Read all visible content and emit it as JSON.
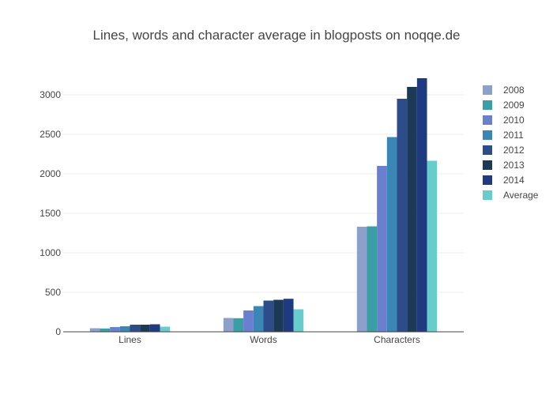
{
  "chart_data": {
    "type": "bar",
    "title": "Lines, words and character average in blogposts on noqqe.de",
    "categories": [
      "Lines",
      "Words",
      "Characters"
    ],
    "series": [
      {
        "name": "2008",
        "color": "#8da0cb",
        "values": [
          45,
          175,
          1330
        ]
      },
      {
        "name": "2009",
        "color": "#3a9ea5",
        "values": [
          42,
          172,
          1335
        ]
      },
      {
        "name": "2010",
        "color": "#6a7fcf",
        "values": [
          60,
          270,
          2100
        ]
      },
      {
        "name": "2011",
        "color": "#3a86b4",
        "values": [
          70,
          325,
          2465
        ]
      },
      {
        "name": "2012",
        "color": "#2e4b8a",
        "values": [
          90,
          395,
          2950
        ]
      },
      {
        "name": "2013",
        "color": "#1c3a55",
        "values": [
          90,
          405,
          3100
        ]
      },
      {
        "name": "2014",
        "color": "#1f3a80",
        "values": [
          95,
          418,
          3210
        ]
      },
      {
        "name": "Average",
        "color": "#66cccc",
        "values": [
          65,
          285,
          2165
        ]
      }
    ],
    "xlabel": "",
    "ylabel": "",
    "ylim": [
      0,
      3400
    ],
    "yticks": [
      0,
      500,
      1000,
      1500,
      2000,
      2500,
      3000
    ],
    "grid": true,
    "legend_position": "right"
  }
}
